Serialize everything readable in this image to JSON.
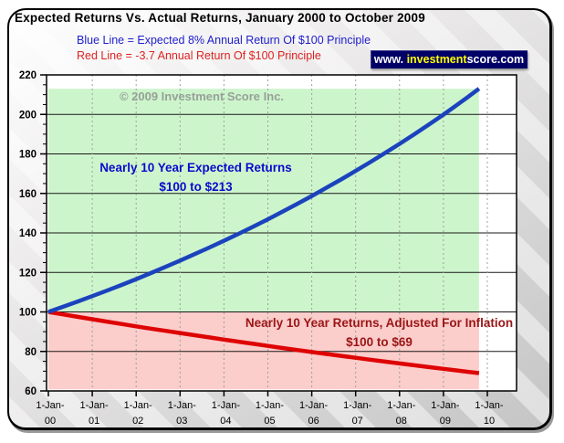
{
  "header": {
    "title": "Expected Returns Vs. Actual Returns, January 2000 to October 2009",
    "legend_blue": "Blue Line = Expected 8% Annual Return Of $100 Principle",
    "legend_red": "Red Line = -3.7 Annual Return Of $100 Principle",
    "website": {
      "prefix": "www. ",
      "highlight": "investment",
      "suffix": "score.com"
    }
  },
  "watermark": "© 2009 Investment Score Inc.",
  "annotations": {
    "expected_line1": "Nearly 10 Year Expected Returns",
    "expected_line2": "$100 to $213",
    "actual_line1": "Nearly 10 Year Returns, Adjusted For Inflation",
    "actual_line2": "$100 to $69"
  },
  "colors": {
    "blue_line": "#1b43bd",
    "red_line": "#de0404",
    "green_band": "#cdf5cc",
    "pink_band": "#fbcdcb",
    "badge_bg": "#000066",
    "badge_highlight": "#ffff00",
    "h_grid": "#1a1a1a",
    "v_grid": "#98a29a"
  },
  "chart_data": {
    "type": "line",
    "title": "Expected Returns Vs. Actual Returns, January 2000 to October 2009",
    "xlabel": "",
    "ylabel": "",
    "x_unit": "years since 1-Jan-2000",
    "ylim": [
      60,
      220
    ],
    "xlim_years": [
      0,
      10.65
    ],
    "grid": {
      "horizontal": "solid",
      "vertical": "dashed"
    },
    "legend_position": "top-left header",
    "x": [
      0,
      1,
      2,
      3,
      4,
      5,
      6,
      7,
      8,
      9,
      9.81
    ],
    "series": [
      {
        "name": "Expected 8% Annual Return Of $100 Principle",
        "color": "#1b43bd",
        "values": [
          100,
          108.0,
          116.6,
          126.0,
          136.0,
          146.9,
          158.7,
          171.4,
          185.1,
          199.9,
          213
        ]
      },
      {
        "name": "-3.7% Annual Return Of $100 Principle",
        "color": "#de0404",
        "values": [
          100,
          96.3,
          92.7,
          89.3,
          86.0,
          82.8,
          79.7,
          76.8,
          73.9,
          71.2,
          69
        ]
      }
    ],
    "bands": [
      {
        "name": "expected-gain-band",
        "color": "#cdf5cc",
        "t0": 0,
        "t1": 9.81,
        "v0": 100,
        "v1": 213
      },
      {
        "name": "inflation-loss-band",
        "color": "#fbcdcb",
        "t0": 0,
        "t1": 9.81,
        "v0": 60.8,
        "v1": 100
      }
    ],
    "yticks": [
      220,
      200,
      180,
      160,
      140,
      120,
      100,
      80,
      60
    ],
    "xticks": [
      {
        "t": 0,
        "line1": "1-Jan-",
        "line2": "00"
      },
      {
        "t": 1,
        "line1": "1-Jan-",
        "line2": "01"
      },
      {
        "t": 2,
        "line1": "1-Jan-",
        "line2": "02"
      },
      {
        "t": 3,
        "line1": "1-Jan-",
        "line2": "03"
      },
      {
        "t": 4,
        "line1": "1-Jan-",
        "line2": "04"
      },
      {
        "t": 5,
        "line1": "1-Jan-",
        "line2": "05"
      },
      {
        "t": 6,
        "line1": "1-Jan-",
        "line2": "06"
      },
      {
        "t": 7,
        "line1": "1-Jan-",
        "line2": "07"
      },
      {
        "t": 8,
        "line1": "1-Jan-",
        "line2": "08"
      },
      {
        "t": 9,
        "line1": "1-Jan-",
        "line2": "09"
      },
      {
        "t": 10,
        "line1": "1-Jan-",
        "line2": "10"
      }
    ]
  }
}
